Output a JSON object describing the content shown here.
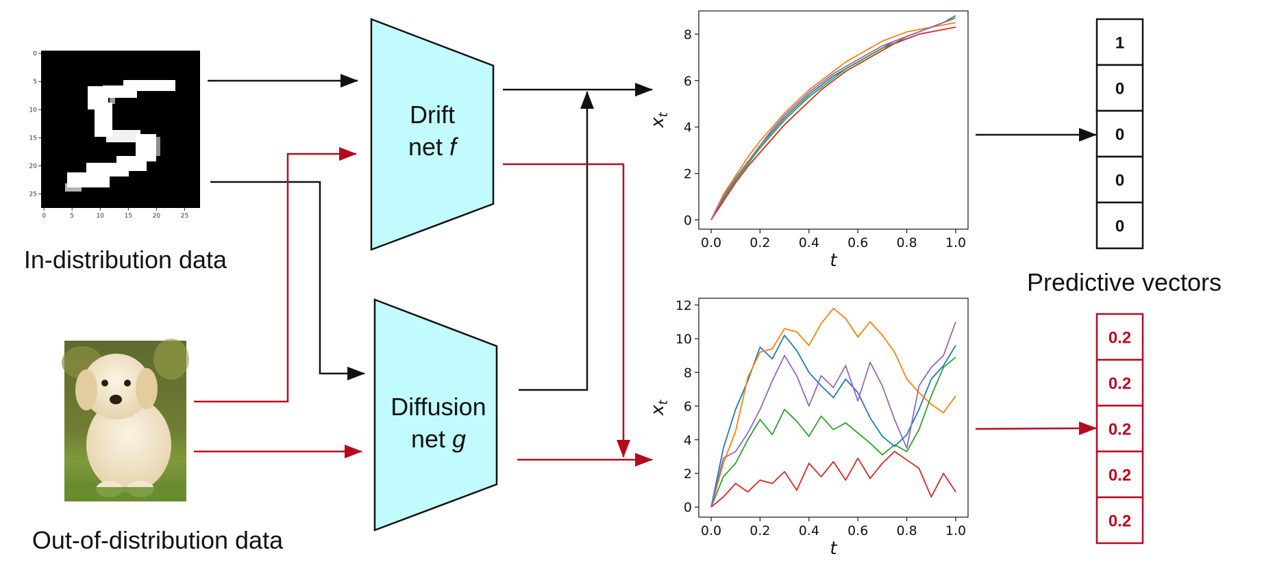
{
  "colors": {
    "black": "#111111",
    "red": "#b5091e",
    "net_fill": "#c1fbfd",
    "series": [
      "#1f77b4",
      "#ff7f0e",
      "#2ca02c",
      "#d62728",
      "#9467bd"
    ]
  },
  "captions": {
    "in_distribution": "In-distribution data",
    "out_of_distribution": "Out-of-distribution data",
    "predictive_vectors": "Predictive vectors"
  },
  "mnist": {
    "icon": "mnist-digit-five-image",
    "x_ticks": [
      "0",
      "5",
      "10",
      "15",
      "20",
      "25"
    ],
    "y_ticks": [
      "0",
      "5",
      "10",
      "15",
      "20",
      "25"
    ]
  },
  "dog": {
    "icon": "puppy-photo"
  },
  "drift_net": {
    "line1": "Drift",
    "line2": "net ",
    "symbol": "f"
  },
  "diffusion_net": {
    "line1": "Diffusion",
    "line2": "net ",
    "symbol": "g"
  },
  "vectors": {
    "in_dist": [
      "1",
      "0",
      "0",
      "0",
      "0"
    ],
    "ood": [
      "0.2",
      "0.2",
      "0.2",
      "0.2",
      "0.2"
    ]
  },
  "chart_data": [
    {
      "type": "line",
      "title": "",
      "xlabel": "t",
      "ylabel": "x_t",
      "xlim": [
        0,
        1.0
      ],
      "ylim": [
        -0.4,
        9.0
      ],
      "xticks": [
        "0.0",
        "0.2",
        "0.4",
        "0.6",
        "0.8",
        "1.0"
      ],
      "yticks": [
        "0",
        "2",
        "4",
        "6",
        "8"
      ],
      "x": [
        0,
        0.05,
        0.1,
        0.15,
        0.2,
        0.25,
        0.3,
        0.35,
        0.4,
        0.45,
        0.5,
        0.55,
        0.6,
        0.65,
        0.7,
        0.75,
        0.8,
        0.85,
        0.9,
        0.95,
        1.0
      ],
      "series": [
        {
          "name": "series-1",
          "values": [
            0,
            1.0,
            1.8,
            2.5,
            3.2,
            3.8,
            4.4,
            4.9,
            5.4,
            5.8,
            6.2,
            6.5,
            6.8,
            7.1,
            7.4,
            7.7,
            7.9,
            8.1,
            8.3,
            8.5,
            8.7
          ]
        },
        {
          "name": "series-2",
          "values": [
            0,
            1.1,
            1.9,
            2.7,
            3.4,
            4.0,
            4.6,
            5.1,
            5.6,
            6.0,
            6.4,
            6.8,
            7.1,
            7.4,
            7.7,
            7.9,
            8.1,
            8.2,
            8.3,
            8.4,
            8.5
          ]
        },
        {
          "name": "series-3",
          "values": [
            0,
            0.9,
            1.7,
            2.4,
            3.1,
            3.7,
            4.3,
            4.8,
            5.3,
            5.7,
            6.1,
            6.5,
            6.8,
            7.1,
            7.4,
            7.6,
            7.9,
            8.1,
            8.3,
            8.5,
            8.8
          ]
        },
        {
          "name": "series-4",
          "values": [
            0,
            0.8,
            1.6,
            2.3,
            2.9,
            3.5,
            4.1,
            4.6,
            5.1,
            5.6,
            6.0,
            6.4,
            6.7,
            7.0,
            7.3,
            7.6,
            7.8,
            8.0,
            8.1,
            8.2,
            8.3
          ]
        },
        {
          "name": "series-5",
          "values": [
            0,
            1.0,
            1.8,
            2.5,
            3.2,
            3.9,
            4.5,
            5.0,
            5.5,
            5.9,
            6.3,
            6.6,
            6.9,
            7.2,
            7.5,
            7.7,
            7.9,
            8.1,
            8.3,
            8.5,
            8.7
          ]
        }
      ]
    },
    {
      "type": "line",
      "title": "",
      "xlabel": "t",
      "ylabel": "x_t",
      "xlim": [
        0,
        1.0
      ],
      "ylim": [
        -0.6,
        12.4
      ],
      "xticks": [
        "0.0",
        "0.2",
        "0.4",
        "0.6",
        "0.8",
        "1.0"
      ],
      "yticks": [
        "0",
        "2",
        "4",
        "6",
        "8",
        "10",
        "12"
      ],
      "x": [
        0,
        0.05,
        0.1,
        0.15,
        0.2,
        0.25,
        0.3,
        0.35,
        0.4,
        0.45,
        0.5,
        0.55,
        0.6,
        0.65,
        0.7,
        0.75,
        0.8,
        0.85,
        0.9,
        0.95,
        1.0
      ],
      "series": [
        {
          "name": "series-1",
          "values": [
            0,
            3.5,
            5.8,
            7.5,
            9.5,
            8.8,
            10.2,
            9.3,
            8.0,
            7.2,
            6.5,
            7.6,
            6.8,
            5.3,
            4.2,
            3.6,
            4.3,
            5.8,
            7.6,
            8.4,
            9.6
          ]
        },
        {
          "name": "series-2",
          "values": [
            0,
            2.6,
            4.5,
            7.7,
            9.2,
            9.4,
            10.6,
            10.4,
            9.6,
            10.9,
            11.8,
            11.2,
            10.1,
            11.0,
            10.2,
            9.2,
            7.6,
            6.8,
            6.1,
            5.6,
            6.6
          ]
        },
        {
          "name": "series-3",
          "values": [
            0,
            1.8,
            2.6,
            4.0,
            5.2,
            4.3,
            5.8,
            5.1,
            4.2,
            5.4,
            4.6,
            5.0,
            4.4,
            3.8,
            3.1,
            3.7,
            3.3,
            4.6,
            6.6,
            8.3,
            8.9
          ]
        },
        {
          "name": "series-4",
          "values": [
            0,
            0.6,
            1.4,
            0.9,
            1.6,
            1.4,
            2.1,
            1.0,
            2.6,
            1.8,
            2.7,
            1.6,
            2.9,
            1.7,
            2.6,
            3.3,
            2.8,
            2.3,
            0.6,
            2.0,
            0.9
          ]
        },
        {
          "name": "series-5",
          "values": [
            0,
            2.9,
            3.3,
            4.4,
            5.8,
            7.5,
            9.0,
            7.8,
            6.0,
            7.8,
            7.1,
            8.4,
            6.3,
            8.6,
            7.2,
            5.2,
            3.5,
            7.2,
            8.3,
            9.0,
            11.0
          ]
        }
      ]
    }
  ]
}
